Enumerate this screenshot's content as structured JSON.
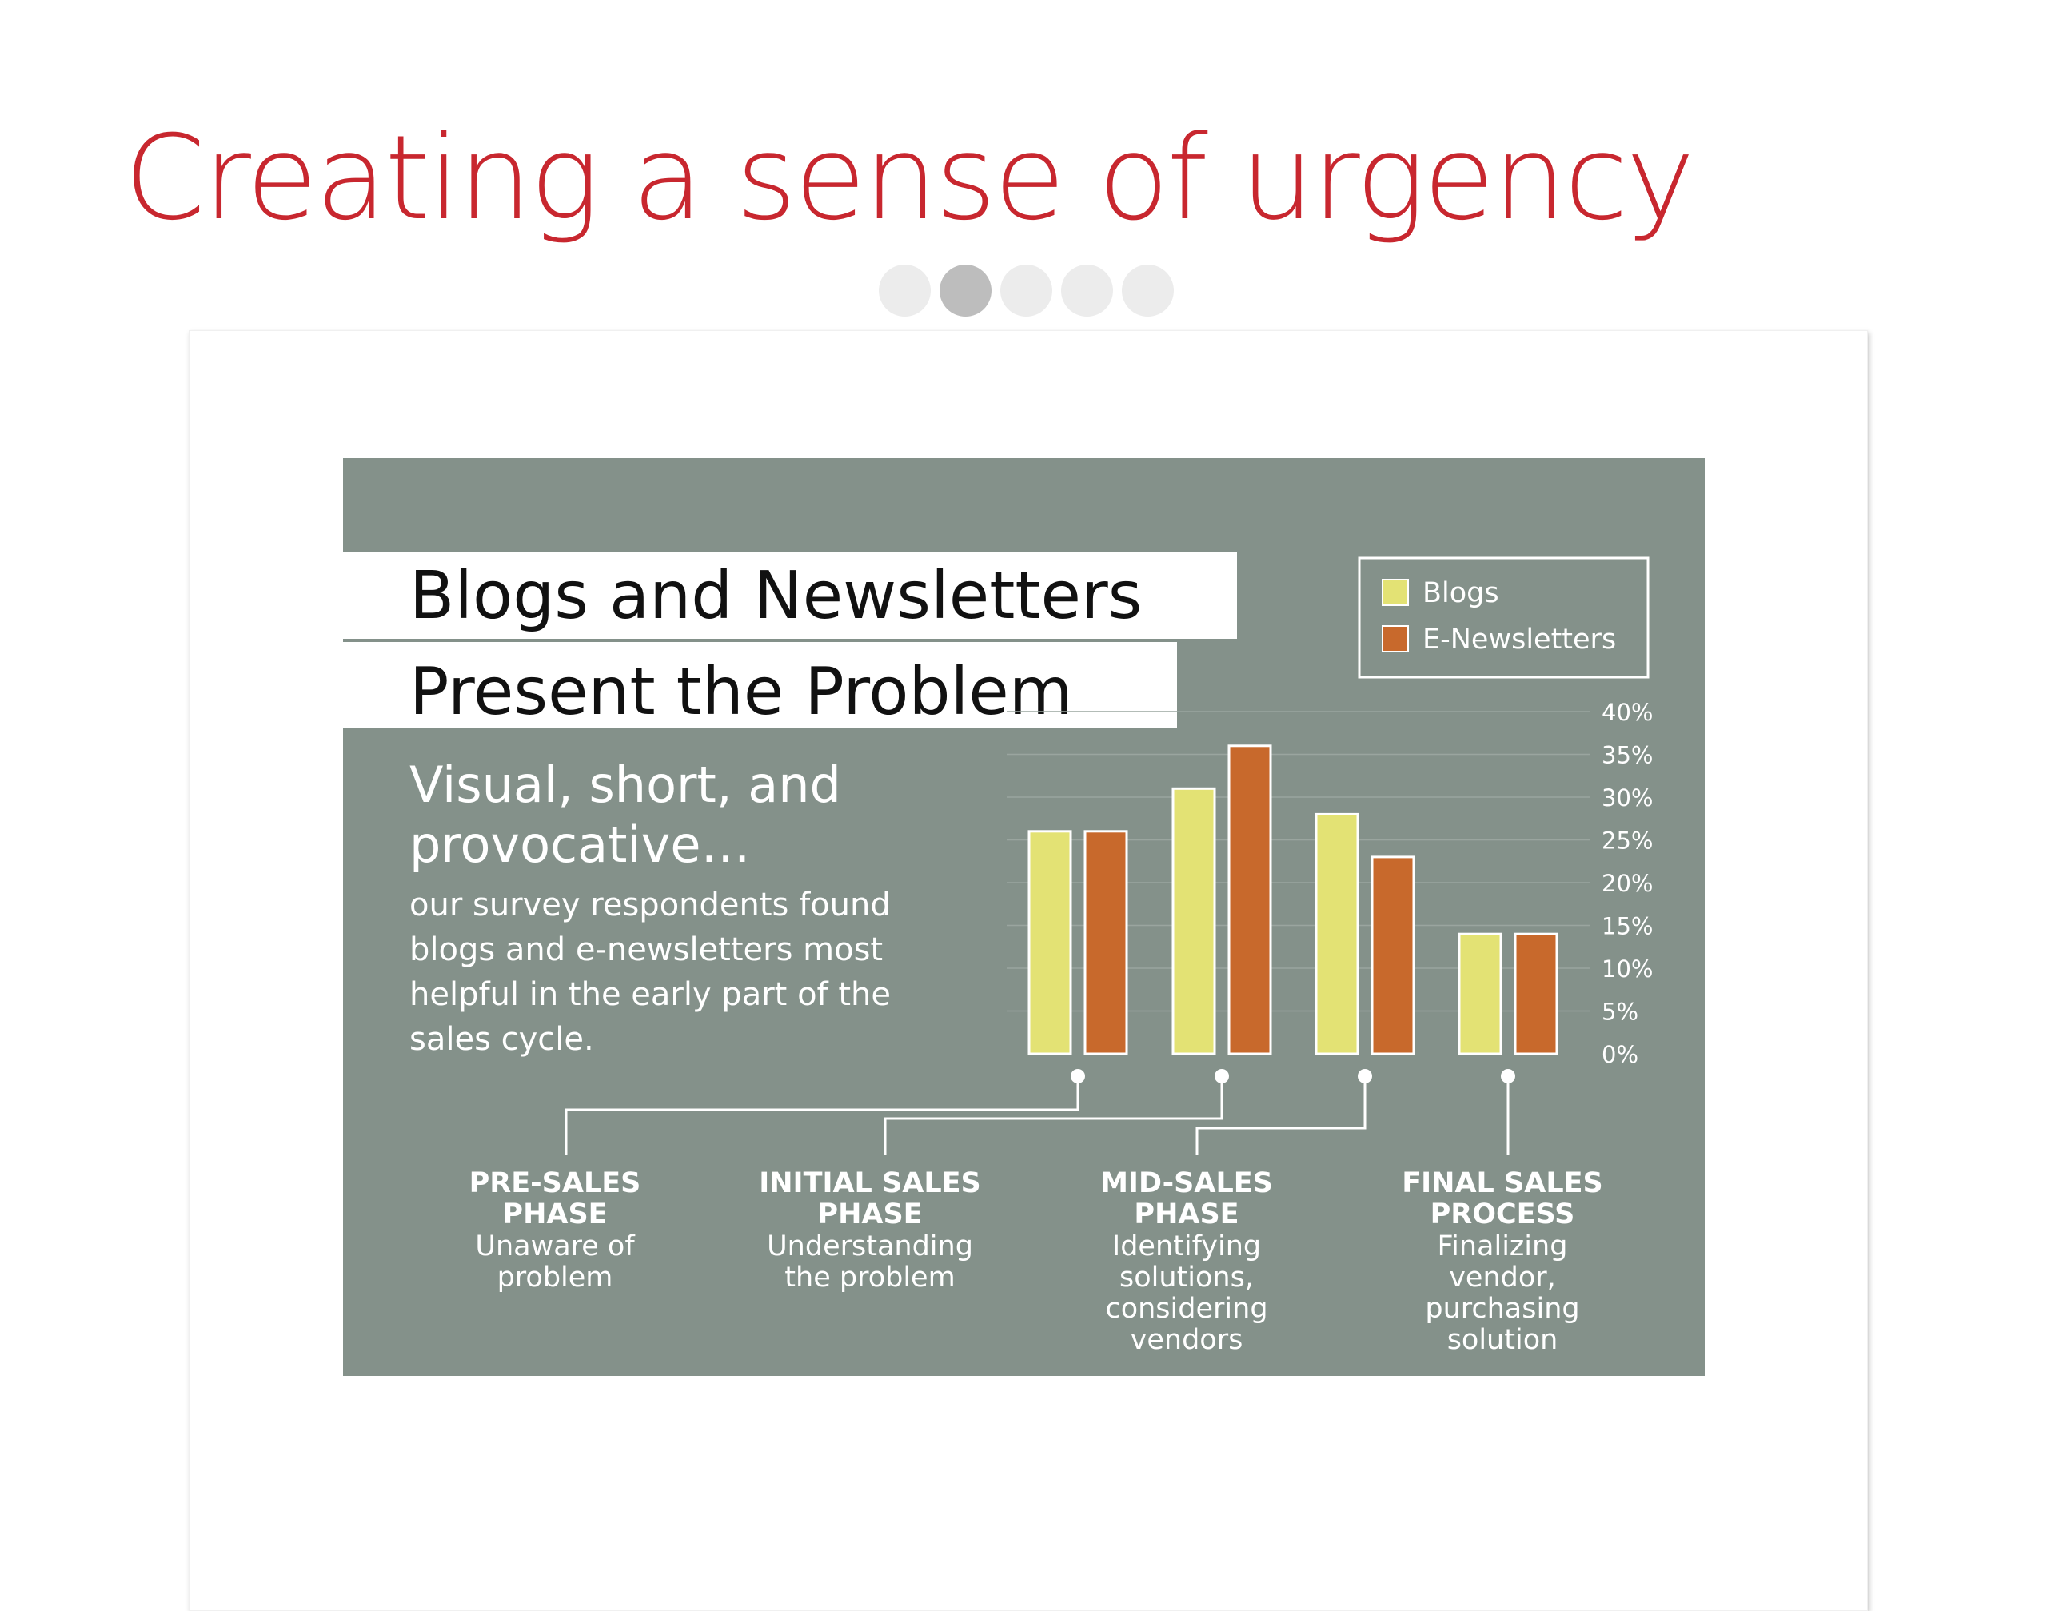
{
  "slide": {
    "title": "Creating a sense of urgency",
    "title_color": "#c8272f",
    "pager": {
      "count": 5,
      "active_index": 1
    }
  },
  "infographic": {
    "background": "#84918a",
    "headline_lines": [
      "Blogs and Newsletters",
      "Present the Problem"
    ],
    "subheading_lines": [
      "Visual, short, and",
      "provocative…"
    ],
    "body_lines": [
      "our survey respondents found",
      "blogs and e-newsletters most",
      "helpful in the early part of the",
      "sales cycle."
    ],
    "phases": [
      {
        "title_lines": [
          "PRE-SALES",
          "PHASE"
        ],
        "desc_lines": [
          "Unaware of",
          "problem"
        ]
      },
      {
        "title_lines": [
          "INITIAL SALES",
          "PHASE"
        ],
        "desc_lines": [
          "Understanding",
          "the problem"
        ]
      },
      {
        "title_lines": [
          "MID-SALES",
          "PHASE"
        ],
        "desc_lines": [
          "Identifying",
          "solutions,",
          "considering",
          "vendors"
        ]
      },
      {
        "title_lines": [
          "FINAL SALES",
          "PROCESS"
        ],
        "desc_lines": [
          "Finalizing",
          "vendor,",
          "purchasing",
          "solution"
        ]
      }
    ]
  },
  "chart_data": {
    "type": "bar",
    "categories": [
      "PRE-SALES PHASE",
      "INITIAL SALES PHASE",
      "MID-SALES PHASE",
      "FINAL SALES PROCESS"
    ],
    "series": [
      {
        "name": "Blogs",
        "values": [
          26,
          31,
          28,
          14
        ],
        "color": "#e3e274"
      },
      {
        "name": "E-Newsletters",
        "values": [
          26,
          36,
          23,
          14
        ],
        "color": "#c8692c"
      }
    ],
    "ylim": [
      0,
      40
    ],
    "ytick_labels": [
      "0%",
      "5%",
      "10%",
      "15%",
      "20%",
      "25%",
      "30%",
      "35%",
      "40%"
    ],
    "ytick_values": [
      0,
      5,
      10,
      15,
      20,
      25,
      30,
      35,
      40
    ],
    "y_axis_side": "right",
    "legend_position": "top-right",
    "grid": true,
    "title": "",
    "xlabel": "",
    "ylabel": ""
  }
}
